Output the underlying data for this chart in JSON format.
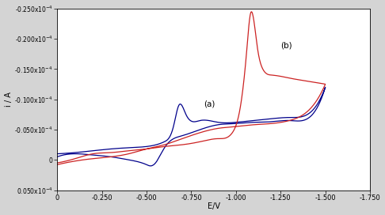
{
  "title": "",
  "xlabel": "E/V",
  "ylabel": "i / A",
  "background_color": "#d4d4d4",
  "plot_bg_color": "#ffffff",
  "color_a": "#00008B",
  "color_b": "#cc2222",
  "label_a": "(a)",
  "label_b": "(b)",
  "yticks": [
    -2.5e-05,
    -2e-05,
    -1.5e-05,
    -1e-05,
    -5e-06,
    0.0,
    5e-06
  ],
  "ytick_labels": [
    "-0.250x10⁻⁴",
    "-0.200x10⁻⁴",
    "-0.150x10⁻⁴",
    "-0.100x10⁻⁴",
    "-0.050x10⁻⁴",
    "0",
    "0.050x10⁻⁴"
  ],
  "xticks": [
    0,
    -0.25,
    -0.5,
    -0.75,
    -1.0,
    -1.25,
    -1.5,
    -1.75
  ],
  "xtick_labels": [
    "0",
    "-0.250",
    "-0.500",
    "-0.750",
    "-1.000",
    "-1.250",
    "-1.500",
    "-1.750"
  ]
}
